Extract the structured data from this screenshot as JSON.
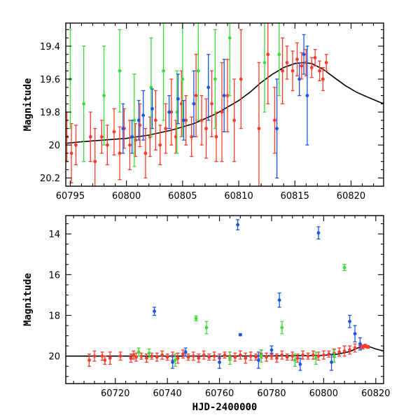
{
  "colors": {
    "blue": "#1a55e6",
    "green": "#3ddc3d",
    "red": "#ff3b2b",
    "model": "#000000"
  },
  "chart_data": [
    {
      "type": "scatter",
      "title": "",
      "xlabel": "",
      "ylabel": "Magnitude",
      "xlim": [
        60794.6,
        60822.9
      ],
      "ylim": [
        20.25,
        19.26
      ],
      "y_inverted": true,
      "xticks": [
        60795,
        60800,
        60805,
        60810,
        60815,
        60820
      ],
      "yticks": [
        19.4,
        19.6,
        19.8,
        20,
        20.2
      ],
      "model": {
        "x": [
          60794.6,
          60796,
          60798,
          60800,
          60802,
          60804,
          60806,
          60808,
          60810,
          60811,
          60812,
          60813,
          60814,
          60815,
          60815.7,
          60816.5,
          60817.5,
          60818.5,
          60819.5,
          60820.5,
          60821.5,
          60822.9
        ],
        "y": [
          19.99,
          19.98,
          19.97,
          19.96,
          19.94,
          19.91,
          19.87,
          19.81,
          19.73,
          19.68,
          19.62,
          19.57,
          19.53,
          19.505,
          19.5,
          19.505,
          19.54,
          19.59,
          19.64,
          19.68,
          19.71,
          19.75
        ]
      },
      "series": [
        {
          "color": "red",
          "points": [
            [
              60794.7,
              19.95,
              0.15
            ],
            [
              60795.1,
              20.05,
              0.18
            ],
            [
              60795.5,
              20.0,
              0.12
            ],
            [
              60796.8,
              19.95,
              0.15
            ],
            [
              60797.2,
              20.1,
              0.2
            ],
            [
              60797.8,
              19.95,
              0.1
            ],
            [
              60798.3,
              20.0,
              0.12
            ],
            [
              60798.9,
              19.92,
              0.14
            ],
            [
              60799.4,
              20.05,
              0.16
            ],
            [
              60799.8,
              19.9,
              0.12
            ],
            [
              60800.3,
              20.0,
              0.15
            ],
            [
              60800.8,
              19.97,
              0.1
            ],
            [
              60801.2,
              19.88,
              0.13
            ],
            [
              60801.7,
              20.05,
              0.15
            ],
            [
              60802.1,
              19.95,
              0.12
            ],
            [
              60802.6,
              19.85,
              0.18
            ],
            [
              60803.0,
              20.0,
              0.12
            ],
            [
              60803.5,
              19.9,
              0.15
            ],
            [
              60804.0,
              19.8,
              0.2
            ],
            [
              60804.4,
              19.95,
              0.1
            ],
            [
              60804.9,
              19.75,
              0.2
            ],
            [
              60805.3,
              19.85,
              0.15
            ],
            [
              60805.8,
              19.95,
              0.12
            ],
            [
              60806.2,
              19.7,
              0.25
            ],
            [
              60806.7,
              19.85,
              0.15
            ],
            [
              60807.1,
              19.9,
              0.18
            ],
            [
              60807.6,
              19.75,
              0.2
            ],
            [
              60808.0,
              19.95,
              0.15
            ],
            [
              60808.5,
              19.8,
              0.3
            ],
            [
              60809.0,
              19.7,
              0.22
            ],
            [
              60809.6,
              19.85,
              0.25
            ],
            [
              60810.2,
              19.6,
              0.3
            ],
            [
              60811.8,
              19.9,
              0.4
            ],
            [
              60812.6,
              19.45,
              0.3
            ],
            [
              60813.2,
              19.85,
              0.2
            ],
            [
              60813.9,
              19.55,
              0.2
            ],
            [
              60814.3,
              19.5,
              0.1
            ],
            [
              60814.8,
              19.55,
              0.12
            ],
            [
              60815.2,
              19.48,
              0.1
            ],
            [
              60815.6,
              19.52,
              0.08
            ],
            [
              60816.0,
              19.5,
              0.08
            ],
            [
              60816.5,
              19.53,
              0.06
            ],
            [
              60816.8,
              19.47,
              0.05
            ],
            [
              60817.2,
              19.55,
              0.06
            ],
            [
              60817.5,
              19.6,
              0.07
            ],
            [
              60817.8,
              19.5,
              0.05
            ]
          ]
        },
        {
          "color": "green",
          "points": [
            [
              60795.0,
              19.6,
              0.3
            ],
            [
              60796.2,
              19.75,
              0.35
            ],
            [
              60798.0,
              19.7,
              0.3
            ],
            [
              60799.4,
              19.55,
              0.25
            ],
            [
              60800.7,
              19.85,
              0.28
            ],
            [
              60802.2,
              19.65,
              0.3
            ],
            [
              60803.3,
              19.55,
              0.3
            ],
            [
              60804.5,
              19.8,
              0.25
            ],
            [
              60805.0,
              19.6,
              0.35
            ],
            [
              60806.4,
              19.55,
              0.3
            ],
            [
              60807.9,
              19.6,
              0.3
            ],
            [
              60809.2,
              19.35,
              0.35
            ],
            [
              60812.3,
              19.5,
              0.3
            ],
            [
              60813.6,
              19.45,
              0.25
            ]
          ]
        },
        {
          "color": "blue",
          "points": [
            [
              60799.7,
              19.9,
              0.15
            ],
            [
              60800.5,
              19.95,
              0.1
            ],
            [
              60801.1,
              19.85,
              0.12
            ],
            [
              60801.5,
              19.82,
              0.15
            ],
            [
              60802.3,
              19.78,
              0.12
            ],
            [
              60803.8,
              19.8,
              0.1
            ],
            [
              60804.6,
              19.72,
              0.15
            ],
            [
              60805.1,
              19.85,
              0.12
            ],
            [
              60806.0,
              19.75,
              0.2
            ],
            [
              60807.3,
              19.65,
              0.2
            ],
            [
              60808.7,
              19.7,
              0.22
            ],
            [
              60813.4,
              19.9,
              0.3
            ],
            [
              60815.4,
              19.6,
              0.1
            ],
            [
              60815.8,
              19.45,
              0.12
            ],
            [
              60816.1,
              19.7,
              0.3
            ]
          ]
        }
      ]
    },
    {
      "type": "scatter",
      "title": "",
      "xlabel": "HJD-2400000",
      "ylabel": "Magnitude",
      "xlim": [
        60701,
        60823
      ],
      "ylim": [
        21.35,
        13.1
      ],
      "y_inverted": true,
      "xticks": [
        60720,
        60740,
        60760,
        60780,
        60800,
        60820
      ],
      "yticks": [
        14,
        16,
        18,
        20
      ],
      "model": {
        "x": [
          60701,
          60720,
          60740,
          60760,
          60780,
          60795,
          60800,
          60805,
          60810,
          60813,
          60815.7,
          60818,
          60820,
          60823
        ],
        "y": [
          20.0,
          20.0,
          20.0,
          20.0,
          19.99,
          19.98,
          19.96,
          19.91,
          19.78,
          19.6,
          19.5,
          19.56,
          19.65,
          19.75
        ]
      },
      "series": [
        {
          "color": "red",
          "points": [
            [
              60710,
              20.2,
              0.3
            ],
            [
              60712,
              20.0,
              0.25
            ],
            [
              60715,
              20.0,
              0.2
            ],
            [
              60716,
              20.2,
              0.2
            ],
            [
              60718,
              20.1,
              0.3
            ],
            [
              60722,
              20.0,
              0.2
            ],
            [
              60726,
              20.1,
              0.2
            ],
            [
              60727,
              19.95,
              0.2
            ],
            [
              60728,
              20.05,
              0.2
            ],
            [
              60730,
              20.0,
              0.15
            ],
            [
              60732,
              20.1,
              0.2
            ],
            [
              60734,
              20.0,
              0.15
            ],
            [
              60736,
              20.05,
              0.2
            ],
            [
              60738,
              19.95,
              0.2
            ],
            [
              60740,
              20.05,
              0.15
            ],
            [
              60742,
              20.0,
              0.2
            ],
            [
              60744,
              20.1,
              0.25
            ],
            [
              60746,
              19.9,
              0.2
            ],
            [
              60748,
              20.05,
              0.15
            ],
            [
              60750,
              20.0,
              0.2
            ],
            [
              60752,
              20.1,
              0.2
            ],
            [
              60754,
              19.95,
              0.2
            ],
            [
              60756,
              20.05,
              0.15
            ],
            [
              60758,
              20.0,
              0.2
            ],
            [
              60760,
              20.1,
              0.2
            ],
            [
              60762,
              19.95,
              0.15
            ],
            [
              60764,
              20.0,
              0.2
            ],
            [
              60766,
              20.05,
              0.2
            ],
            [
              60768,
              19.95,
              0.2
            ],
            [
              60770,
              20.1,
              0.25
            ],
            [
              60772,
              20.0,
              0.2
            ],
            [
              60774,
              20.05,
              0.15
            ],
            [
              60776,
              19.9,
              0.2
            ],
            [
              60778,
              20.05,
              0.2
            ],
            [
              60780,
              20.0,
              0.15
            ],
            [
              60782,
              20.1,
              0.2
            ],
            [
              60784,
              19.95,
              0.2
            ],
            [
              60786,
              20.05,
              0.15
            ],
            [
              60788,
              20.0,
              0.2
            ],
            [
              60790,
              20.1,
              0.2
            ],
            [
              60792,
              19.95,
              0.2
            ],
            [
              60794,
              20.0,
              0.15
            ],
            [
              60796,
              19.95,
              0.2
            ],
            [
              60798,
              20.0,
              0.2
            ],
            [
              60800,
              19.95,
              0.2
            ],
            [
              60802,
              19.9,
              0.15
            ],
            [
              60804,
              19.85,
              0.2
            ],
            [
              60806,
              19.8,
              0.2
            ],
            [
              60808,
              19.75,
              0.25
            ],
            [
              60810,
              19.7,
              0.2
            ],
            [
              60812,
              19.6,
              0.2
            ],
            [
              60814,
              19.5,
              0.12
            ],
            [
              60815,
              19.55,
              0.1
            ],
            [
              60816,
              19.5,
              0.08
            ],
            [
              60817,
              19.55,
              0.07
            ]
          ]
        },
        {
          "color": "green",
          "points": [
            [
              60729,
              19.8,
              0.2
            ],
            [
              60733,
              19.85,
              0.2
            ],
            [
              60743,
              20.2,
              0.3
            ],
            [
              60751,
              18.15,
              0.12
            ],
            [
              60755,
              18.6,
              0.3
            ],
            [
              60764,
              20.1,
              0.3
            ],
            [
              60776,
              20.0,
              0.3
            ],
            [
              60784,
              18.6,
              0.3
            ],
            [
              60789,
              20.2,
              0.3
            ],
            [
              60797,
              20.1,
              0.3
            ],
            [
              60804,
              20.0,
              0.3
            ],
            [
              60808,
              15.65,
              0.15
            ]
          ]
        },
        {
          "color": "blue",
          "points": [
            [
              60735,
              17.8,
              0.2
            ],
            [
              60742,
              20.3,
              0.3
            ],
            [
              60747,
              19.8,
              0.2
            ],
            [
              60760,
              20.3,
              0.3
            ],
            [
              60767,
              13.55,
              0.25
            ],
            [
              60768,
              18.95,
              0.05
            ],
            [
              60775,
              20.2,
              0.4
            ],
            [
              60780,
              19.7,
              0.2
            ],
            [
              60783,
              17.25,
              0.35
            ],
            [
              60791,
              20.4,
              0.3
            ],
            [
              60798,
              13.95,
              0.3
            ],
            [
              60803,
              20.3,
              0.4
            ],
            [
              60810,
              18.3,
              0.3
            ],
            [
              60812,
              18.9,
              0.4
            ],
            [
              60814,
              19.4,
              0.3
            ]
          ]
        }
      ]
    }
  ]
}
